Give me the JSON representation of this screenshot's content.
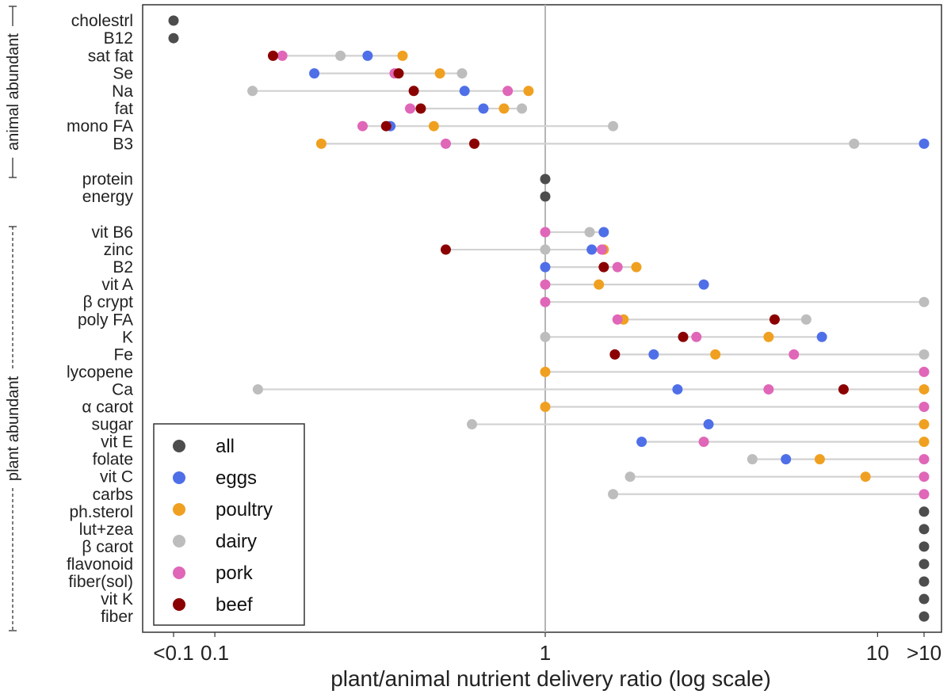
{
  "chart_data": {
    "type": "scatter",
    "title": "",
    "xlabel": "plant/animal nutrient delivery ratio (log scale)",
    "ylabel": "",
    "xscale": "log",
    "xlim": [
      0.06,
      16
    ],
    "x_ticks": [
      {
        "value": 0.075,
        "label": "<0.1"
      },
      {
        "value": 0.1,
        "label": "0.1"
      },
      {
        "value": 1,
        "label": "1"
      },
      {
        "value": 10,
        "label": "10"
      },
      {
        "value": 13.8,
        "label": ">10"
      }
    ],
    "group_labels": {
      "animal": "animal abundant",
      "plant": "plant abundant"
    },
    "colors": {
      "all": "#4d4d4d",
      "eggs": "#4f6fe8",
      "poultry": "#f0a020",
      "dairy": "#bdbdbd",
      "pork": "#e066b8",
      "beef": "#8b0000"
    },
    "legend": [
      {
        "key": "all",
        "label": "all"
      },
      {
        "key": "eggs",
        "label": "eggs"
      },
      {
        "key": "poultry",
        "label": "poultry"
      },
      {
        "key": "dairy",
        "label": "dairy"
      },
      {
        "key": "pork",
        "label": "pork"
      },
      {
        "key": "beef",
        "label": "beef"
      }
    ],
    "legend_position": "bottom-left",
    "series_note": "value 0.075 = <0.1 ; value 13.8 = >10",
    "rows": [
      {
        "label": "cholestrl",
        "group": "animal",
        "points": {
          "all": 0.075
        }
      },
      {
        "label": "B12",
        "group": "animal",
        "points": {
          "all": 0.075
        }
      },
      {
        "label": "sat fat",
        "group": "animal",
        "points": {
          "beef": 0.15,
          "pork": 0.16,
          "dairy": 0.24,
          "eggs": 0.29,
          "poultry": 0.37
        }
      },
      {
        "label": "Se",
        "group": "animal",
        "points": {
          "eggs": 0.2,
          "pork": 0.35,
          "beef": 0.36,
          "poultry": 0.48,
          "dairy": 0.56
        }
      },
      {
        "label": "Na",
        "group": "animal",
        "points": {
          "dairy": 0.13,
          "beef": 0.4,
          "eggs": 0.57,
          "pork": 0.77,
          "poultry": 0.89
        }
      },
      {
        "label": "fat",
        "group": "animal",
        "points": {
          "pork": 0.39,
          "beef": 0.42,
          "eggs": 0.65,
          "poultry": 0.75,
          "dairy": 0.85
        }
      },
      {
        "label": "mono FA",
        "group": "animal",
        "points": {
          "pork": 0.28,
          "beef": 0.33,
          "eggs": 0.34,
          "poultry": 0.46,
          "dairy": 1.6
        }
      },
      {
        "label": "B3",
        "group": "animal",
        "points": {
          "poultry": 0.21,
          "pork": 0.5,
          "beef": 0.61,
          "dairy": 8.5,
          "eggs": 13.8
        }
      },
      {
        "label": "protein",
        "group": "neutral",
        "points": {
          "all": 1.0
        }
      },
      {
        "label": "energy",
        "group": "neutral",
        "points": {
          "all": 1.0
        }
      },
      {
        "label": "vit B6",
        "group": "plant",
        "points": {
          "pork": 1.0,
          "dairy": 1.36,
          "eggs": 1.5
        }
      },
      {
        "label": "zinc",
        "group": "plant",
        "points": {
          "beef": 0.5,
          "dairy": 1.0,
          "eggs": 1.38,
          "poultry": 1.5,
          "pork": 1.48
        }
      },
      {
        "label": "B2",
        "group": "plant",
        "points": {
          "eggs": 1.0,
          "beef": 1.5,
          "pork": 1.65,
          "poultry": 1.88
        }
      },
      {
        "label": "vit A",
        "group": "plant",
        "points": {
          "pork": 1.0,
          "poultry": 1.45,
          "eggs": 3.0
        }
      },
      {
        "label": "β crypt",
        "group": "plant",
        "points": {
          "pork": 1.0,
          "dairy": 13.8
        }
      },
      {
        "label": "poly FA",
        "group": "plant",
        "points": {
          "pork": 1.65,
          "poultry": 1.72,
          "beef": 4.9,
          "dairy": 6.1
        }
      },
      {
        "label": "K",
        "group": "plant",
        "points": {
          "dairy": 1.0,
          "beef": 2.6,
          "pork": 2.85,
          "poultry": 4.7,
          "eggs": 6.8
        }
      },
      {
        "label": "Fe",
        "group": "plant",
        "points": {
          "beef": 1.62,
          "eggs": 2.12,
          "poultry": 3.25,
          "pork": 5.6,
          "dairy": 13.8
        }
      },
      {
        "label": "lycopene",
        "group": "plant",
        "points": {
          "poultry": 1.0,
          "pork": 13.8
        }
      },
      {
        "label": "Ca",
        "group": "plant",
        "points": {
          "dairy": 0.135,
          "eggs": 2.5,
          "pork": 4.7,
          "beef": 7.9,
          "poultry": 13.8
        }
      },
      {
        "label": "α carot",
        "group": "plant",
        "points": {
          "poultry": 1.0,
          "pork": 13.8
        }
      },
      {
        "label": "sugar",
        "group": "plant",
        "points": {
          "dairy": 0.6,
          "eggs": 3.1,
          "poultry": 13.8
        }
      },
      {
        "label": "vit E",
        "group": "plant",
        "points": {
          "eggs": 1.95,
          "pork": 3.0,
          "poultry": 13.8
        }
      },
      {
        "label": "folate",
        "group": "plant",
        "points": {
          "dairy": 4.2,
          "eggs": 5.3,
          "poultry": 6.7,
          "pork": 13.8
        }
      },
      {
        "label": "vit C",
        "group": "plant",
        "points": {
          "dairy": 1.8,
          "poultry": 9.2,
          "pork": 13.8
        }
      },
      {
        "label": "carbs",
        "group": "plant",
        "points": {
          "dairy": 1.6,
          "pork": 13.8
        }
      },
      {
        "label": "ph.sterol",
        "group": "plant",
        "points": {
          "all": 13.8
        }
      },
      {
        "label": "lut+zea",
        "group": "plant",
        "points": {
          "all": 13.8
        }
      },
      {
        "label": "β carot",
        "group": "plant",
        "points": {
          "all": 13.8
        }
      },
      {
        "label": "flavonoid",
        "group": "plant",
        "points": {
          "all": 13.8
        }
      },
      {
        "label": "fiber(sol)",
        "group": "plant",
        "points": {
          "all": 13.8
        }
      },
      {
        "label": "vit K",
        "group": "plant",
        "points": {
          "all": 13.8
        }
      },
      {
        "label": "fiber",
        "group": "plant",
        "points": {
          "all": 13.8
        }
      }
    ]
  }
}
